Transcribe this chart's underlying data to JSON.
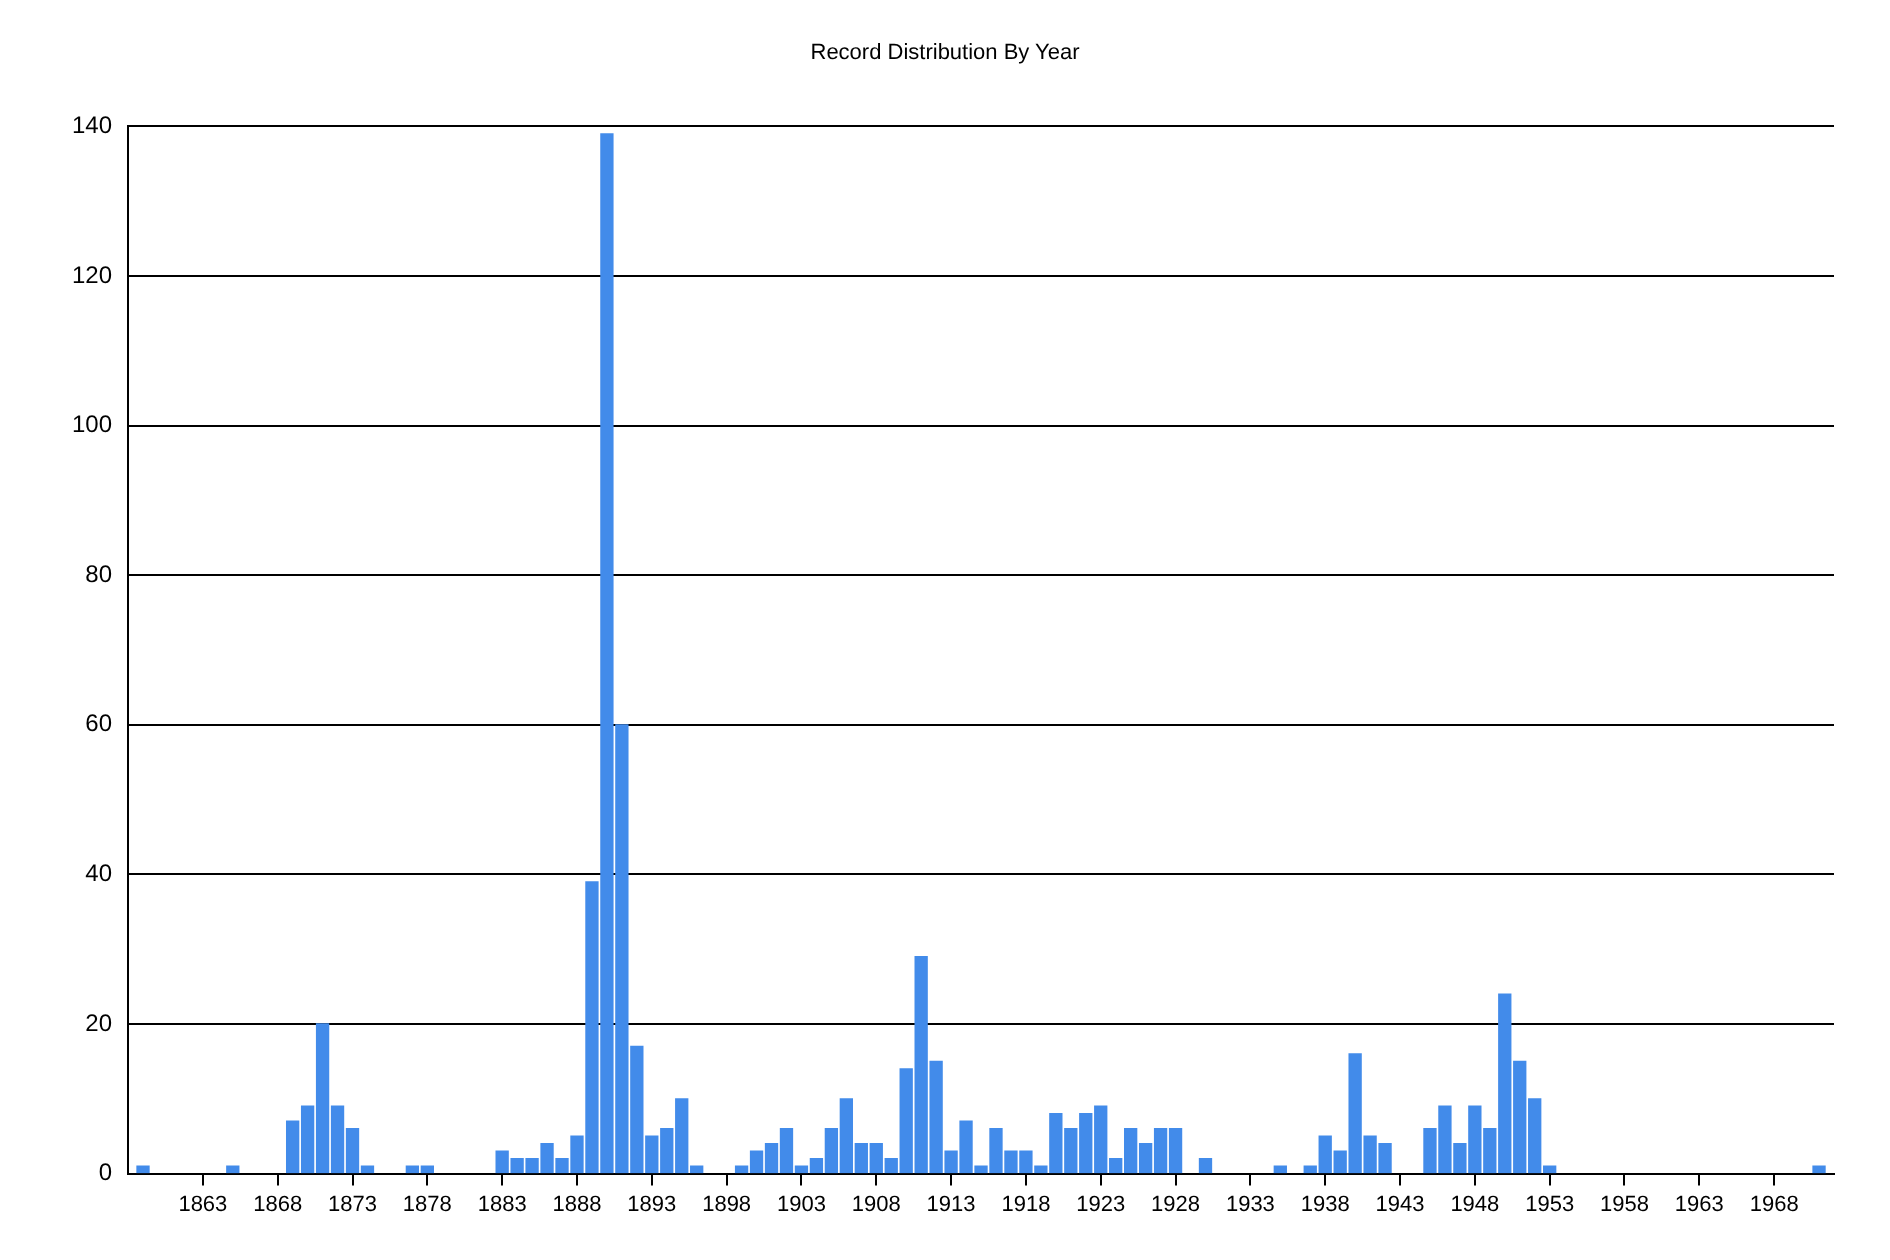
{
  "chart_data": {
    "type": "bar",
    "title": "Record Distribution By Year",
    "x": [
      1859,
      1865,
      1869,
      1870,
      1871,
      1872,
      1873,
      1874,
      1877,
      1878,
      1883,
      1884,
      1885,
      1886,
      1887,
      1888,
      1889,
      1890,
      1891,
      1892,
      1893,
      1894,
      1895,
      1896,
      1899,
      1900,
      1901,
      1902,
      1903,
      1904,
      1905,
      1906,
      1907,
      1908,
      1909,
      1910,
      1911,
      1912,
      1913,
      1914,
      1915,
      1916,
      1917,
      1918,
      1919,
      1920,
      1921,
      1922,
      1923,
      1924,
      1925,
      1926,
      1927,
      1928,
      1930,
      1935,
      1937,
      1938,
      1939,
      1940,
      1941,
      1942,
      1945,
      1946,
      1947,
      1948,
      1949,
      1950,
      1951,
      1952,
      1953,
      1971
    ],
    "series": [
      {
        "color": "#428bea",
        "values": [
          1,
          1,
          7,
          9,
          20,
          9,
          6,
          1,
          1,
          1,
          3,
          2,
          2,
          4,
          2,
          5,
          39,
          139,
          60,
          17,
          5,
          6,
          10,
          1,
          1,
          3,
          4,
          6,
          1,
          2,
          6,
          10,
          4,
          4,
          2,
          14,
          29,
          15,
          3,
          7,
          1,
          6,
          3,
          3,
          1,
          8,
          6,
          8,
          9,
          2,
          6,
          4,
          6,
          6,
          2,
          1,
          1,
          5,
          3,
          16,
          5,
          4,
          6,
          9,
          4,
          9,
          6,
          24,
          15,
          10,
          1,
          1
        ]
      }
    ],
    "xlim": [
      1858,
      1972
    ],
    "xticks": [
      1863,
      1868,
      1873,
      1878,
      1883,
      1888,
      1893,
      1898,
      1903,
      1908,
      1913,
      1918,
      1923,
      1928,
      1933,
      1938,
      1943,
      1948,
      1953,
      1958,
      1963,
      1968
    ],
    "ylim": [
      0,
      140
    ],
    "yticks": [
      0,
      20,
      40,
      60,
      80,
      100,
      120,
      140
    ],
    "grid": "y",
    "legend": false
  }
}
